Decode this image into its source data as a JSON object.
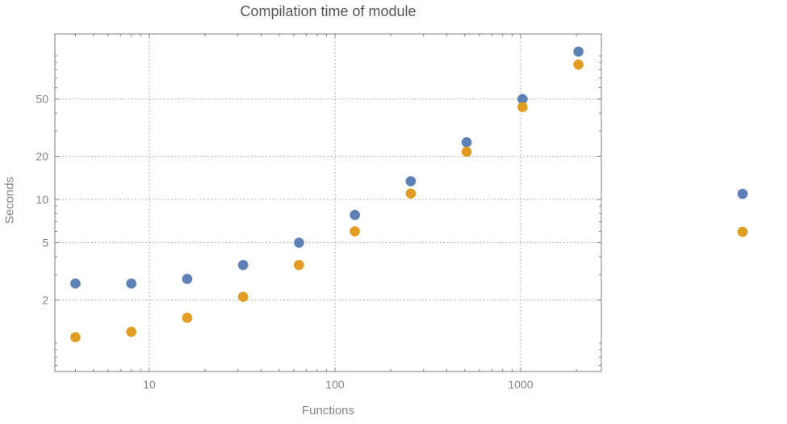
{
  "chart_data": {
    "type": "scatter",
    "title": "Compilation time of module",
    "xlabel": "Functions",
    "ylabel": "Seconds",
    "xscale": "log",
    "yscale": "log",
    "xlim": [
      3.1,
      2722
    ],
    "ylim": [
      0.635,
      142
    ],
    "x_ticks": [
      10,
      100,
      1000
    ],
    "x_tick_labels": [
      "10",
      "100",
      "1000"
    ],
    "y_ticks": [
      2,
      5,
      10,
      20,
      50
    ],
    "y_tick_labels": [
      "2",
      "5",
      "10",
      "20",
      "50"
    ],
    "grid": true,
    "legend": {
      "position": "right-outside",
      "entries": [
        {
          "label": "",
          "color": "#5E81B5"
        },
        {
          "label": "",
          "color": "#E19C24"
        }
      ]
    },
    "series": [
      {
        "name": "series-blue",
        "color": "#5E81B5",
        "x": [
          4,
          8,
          16,
          32,
          64,
          128,
          256,
          512,
          1024,
          2048
        ],
        "y": [
          2.6,
          2.6,
          2.8,
          3.5,
          5.0,
          7.8,
          13.4,
          25,
          50,
          107
        ]
      },
      {
        "name": "series-orange",
        "color": "#E19C24",
        "x": [
          4,
          8,
          16,
          32,
          64,
          128,
          256,
          512,
          1024,
          2048
        ],
        "y": [
          1.1,
          1.2,
          1.5,
          2.1,
          3.5,
          6.0,
          11,
          21.5,
          44,
          87
        ]
      }
    ],
    "colors": {
      "grid": "#999999",
      "frame": "#7f7f7f",
      "title": "#545454",
      "labels": "#848484"
    }
  }
}
